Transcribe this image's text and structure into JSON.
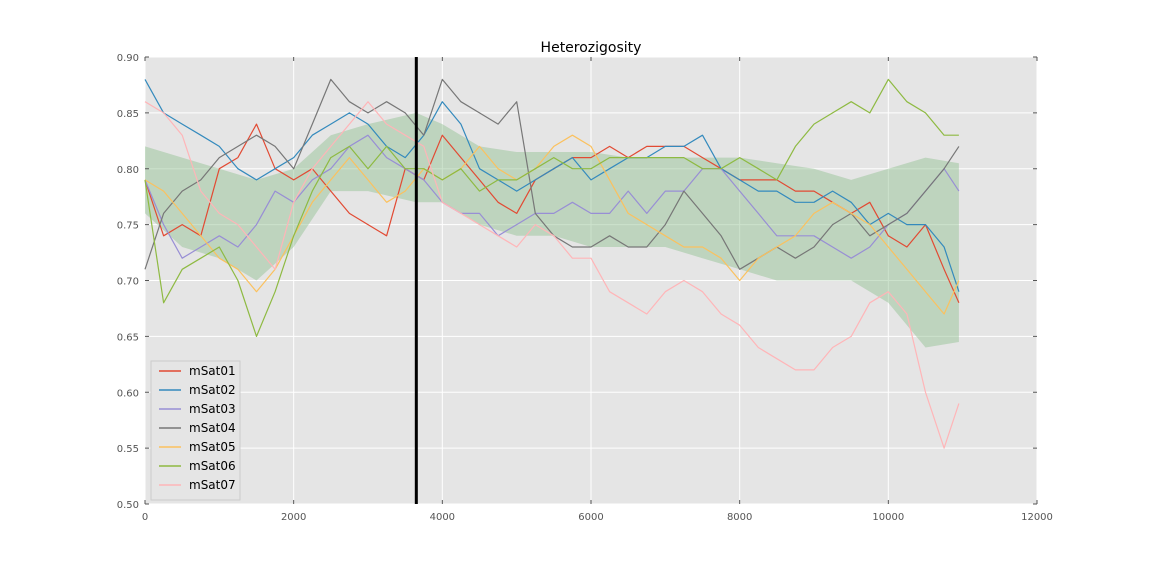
{
  "chart_data": {
    "type": "line",
    "title": "Heterozigosity",
    "xlabel": "",
    "ylabel": "",
    "xlim": [
      0,
      12000
    ],
    "ylim": [
      0.5,
      0.9
    ],
    "xticks": [
      0,
      2000,
      4000,
      6000,
      8000,
      10000,
      12000
    ],
    "xtick_labels": [
      "0",
      "2000",
      "4000",
      "6000",
      "8000",
      "10000",
      "12000"
    ],
    "yticks": [
      0.5,
      0.55,
      0.6,
      0.65,
      0.7,
      0.75,
      0.8,
      0.85,
      0.9
    ],
    "ytick_labels": [
      "0.50",
      "0.55",
      "0.60",
      "0.65",
      "0.70",
      "0.75",
      "0.80",
      "0.85",
      "0.90"
    ],
    "grid": true,
    "background": "#e5e5e5",
    "legend_position": "lower-left",
    "vline": {
      "x": 3650,
      "color": "#000000"
    },
    "band": {
      "color": "#8fbf8f",
      "x": [
        0,
        500,
        1000,
        1500,
        2000,
        2500,
        3000,
        3650,
        4000,
        4500,
        5000,
        5500,
        6000,
        6500,
        7000,
        7500,
        8000,
        8500,
        9000,
        9500,
        10000,
        10500,
        10950
      ],
      "upper": [
        0.82,
        0.81,
        0.8,
        0.79,
        0.8,
        0.83,
        0.84,
        0.85,
        0.84,
        0.82,
        0.815,
        0.815,
        0.815,
        0.81,
        0.81,
        0.81,
        0.81,
        0.805,
        0.8,
        0.79,
        0.8,
        0.81,
        0.805
      ],
      "lower": [
        0.76,
        0.73,
        0.72,
        0.7,
        0.73,
        0.78,
        0.78,
        0.77,
        0.77,
        0.75,
        0.74,
        0.74,
        0.73,
        0.73,
        0.73,
        0.72,
        0.71,
        0.7,
        0.7,
        0.7,
        0.68,
        0.64,
        0.645
      ]
    },
    "x": [
      0,
      250,
      500,
      750,
      1000,
      1250,
      1500,
      1750,
      2000,
      2250,
      2500,
      2750,
      3000,
      3250,
      3500,
      3750,
      4000,
      4250,
      4500,
      4750,
      5000,
      5250,
      5500,
      5750,
      6000,
      6250,
      6500,
      6750,
      7000,
      7250,
      7500,
      7750,
      8000,
      8250,
      8500,
      8750,
      9000,
      9250,
      9500,
      9750,
      10000,
      10250,
      10500,
      10750,
      10950
    ],
    "series": [
      {
        "name": "mSat01",
        "color": "#e24a33",
        "values": [
          0.79,
          0.74,
          0.75,
          0.74,
          0.8,
          0.81,
          0.84,
          0.8,
          0.79,
          0.8,
          0.78,
          0.76,
          0.75,
          0.74,
          0.8,
          0.79,
          0.83,
          0.81,
          0.79,
          0.77,
          0.76,
          0.79,
          0.8,
          0.81,
          0.81,
          0.82,
          0.81,
          0.82,
          0.82,
          0.82,
          0.81,
          0.8,
          0.79,
          0.79,
          0.79,
          0.78,
          0.78,
          0.77,
          0.76,
          0.77,
          0.74,
          0.73,
          0.75,
          0.71,
          0.68
        ]
      },
      {
        "name": "mSat02",
        "color": "#348abd",
        "values": [
          0.88,
          0.85,
          0.84,
          0.83,
          0.82,
          0.8,
          0.79,
          0.8,
          0.81,
          0.83,
          0.84,
          0.85,
          0.84,
          0.82,
          0.81,
          0.83,
          0.86,
          0.84,
          0.8,
          0.79,
          0.78,
          0.79,
          0.8,
          0.81,
          0.79,
          0.8,
          0.81,
          0.81,
          0.82,
          0.82,
          0.83,
          0.8,
          0.79,
          0.78,
          0.78,
          0.77,
          0.77,
          0.78,
          0.77,
          0.75,
          0.76,
          0.75,
          0.75,
          0.73,
          0.69
        ]
      },
      {
        "name": "mSat03",
        "color": "#988ed5",
        "values": [
          0.79,
          0.75,
          0.72,
          0.73,
          0.74,
          0.73,
          0.75,
          0.78,
          0.77,
          0.79,
          0.8,
          0.82,
          0.83,
          0.81,
          0.8,
          0.79,
          0.77,
          0.76,
          0.76,
          0.74,
          0.75,
          0.76,
          0.76,
          0.77,
          0.76,
          0.76,
          0.78,
          0.76,
          0.78,
          0.78,
          0.8,
          0.8,
          0.78,
          0.76,
          0.74,
          0.74,
          0.74,
          0.73,
          0.72,
          0.73,
          0.75,
          0.76,
          0.78,
          0.8,
          0.78
        ]
      },
      {
        "name": "mSat04",
        "color": "#777777",
        "values": [
          0.71,
          0.76,
          0.78,
          0.79,
          0.81,
          0.82,
          0.83,
          0.82,
          0.8,
          0.84,
          0.88,
          0.86,
          0.85,
          0.86,
          0.85,
          0.83,
          0.88,
          0.86,
          0.85,
          0.84,
          0.86,
          0.76,
          0.74,
          0.73,
          0.73,
          0.74,
          0.73,
          0.73,
          0.75,
          0.78,
          0.76,
          0.74,
          0.71,
          0.72,
          0.73,
          0.72,
          0.73,
          0.75,
          0.76,
          0.74,
          0.75,
          0.76,
          0.78,
          0.8,
          0.82
        ]
      },
      {
        "name": "mSat05",
        "color": "#fbc15e",
        "values": [
          0.79,
          0.78,
          0.76,
          0.74,
          0.72,
          0.71,
          0.69,
          0.71,
          0.74,
          0.77,
          0.79,
          0.81,
          0.79,
          0.77,
          0.78,
          0.8,
          0.79,
          0.8,
          0.82,
          0.8,
          0.79,
          0.8,
          0.82,
          0.83,
          0.82,
          0.79,
          0.76,
          0.75,
          0.74,
          0.73,
          0.73,
          0.72,
          0.7,
          0.72,
          0.73,
          0.74,
          0.76,
          0.77,
          0.76,
          0.75,
          0.73,
          0.71,
          0.69,
          0.67,
          0.7
        ]
      },
      {
        "name": "mSat06",
        "color": "#8eba42",
        "values": [
          0.79,
          0.68,
          0.71,
          0.72,
          0.73,
          0.7,
          0.65,
          0.69,
          0.74,
          0.78,
          0.81,
          0.82,
          0.8,
          0.82,
          0.8,
          0.8,
          0.79,
          0.8,
          0.78,
          0.79,
          0.79,
          0.8,
          0.81,
          0.8,
          0.8,
          0.81,
          0.81,
          0.81,
          0.81,
          0.81,
          0.8,
          0.8,
          0.81,
          0.8,
          0.79,
          0.82,
          0.84,
          0.85,
          0.86,
          0.85,
          0.88,
          0.86,
          0.85,
          0.83,
          0.83
        ]
      },
      {
        "name": "mSat07",
        "color": "#ffb5b8",
        "values": [
          0.86,
          0.85,
          0.83,
          0.78,
          0.76,
          0.75,
          0.73,
          0.71,
          0.77,
          0.8,
          0.82,
          0.84,
          0.86,
          0.84,
          0.83,
          0.82,
          0.77,
          0.76,
          0.75,
          0.74,
          0.73,
          0.75,
          0.74,
          0.72,
          0.72,
          0.69,
          0.68,
          0.67,
          0.69,
          0.7,
          0.69,
          0.67,
          0.66,
          0.64,
          0.63,
          0.62,
          0.62,
          0.64,
          0.65,
          0.68,
          0.69,
          0.67,
          0.6,
          0.55,
          0.59
        ]
      }
    ]
  }
}
